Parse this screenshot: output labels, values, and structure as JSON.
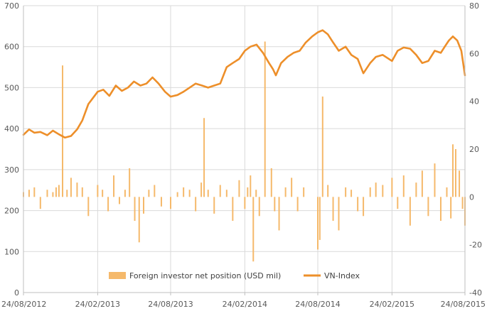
{
  "chart_data": {
    "type": "bar+line",
    "title": "",
    "x_ticks": [
      "24/08/2012",
      "24/02/2013",
      "24/08/2013",
      "24/02/2014",
      "24/08/2014",
      "24/02/2015",
      "24/08/2015"
    ],
    "x_range": [
      "2012-08-24",
      "2015-08-24"
    ],
    "left_axis": {
      "min": 0,
      "max": 700,
      "ticks": [
        0,
        100,
        200,
        300,
        400,
        500,
        600,
        700
      ]
    },
    "right_axis": {
      "min": -40,
      "max": 80,
      "ticks": [
        -40,
        -20,
        0,
        20,
        40,
        60,
        80
      ]
    },
    "gridlines": true,
    "legend_position": "bottom",
    "colors": {
      "bars": "#f5b96b",
      "line": "#ed8f2a",
      "grid": "#d9d9d9",
      "text": "#595959"
    },
    "series": [
      {
        "name": "Foreign investor net position (USD mil)",
        "type": "bar",
        "axis": "right",
        "x": [
          "2012-08-24",
          "2012-09-07",
          "2012-09-20",
          "2012-10-05",
          "2012-10-22",
          "2012-11-05",
          "2012-11-13",
          "2012-11-20",
          "2012-11-29",
          "2012-12-10",
          "2012-12-20",
          "2013-01-04",
          "2013-01-17",
          "2013-02-01",
          "2013-02-24",
          "2013-03-08",
          "2013-03-22",
          "2013-04-05",
          "2013-04-19",
          "2013-05-03",
          "2013-05-14",
          "2013-05-27",
          "2013-06-07",
          "2013-06-18",
          "2013-07-01",
          "2013-07-15",
          "2013-08-01",
          "2013-08-24",
          "2013-09-10",
          "2013-09-25",
          "2013-10-10",
          "2013-10-25",
          "2013-11-08",
          "2013-11-15",
          "2013-11-25",
          "2013-12-10",
          "2013-12-25",
          "2014-01-10",
          "2014-01-25",
          "2014-02-10",
          "2014-02-24",
          "2014-03-03",
          "2014-03-10",
          "2014-03-17",
          "2014-03-24",
          "2014-04-01",
          "2014-04-15",
          "2014-05-01",
          "2014-05-09",
          "2014-05-20",
          "2014-06-05",
          "2014-06-20",
          "2014-07-05",
          "2014-07-20",
          "2014-08-24",
          "2014-08-29",
          "2014-09-05",
          "2014-09-18",
          "2014-10-01",
          "2014-10-15",
          "2014-11-01",
          "2014-11-15",
          "2014-12-01",
          "2014-12-15",
          "2015-01-01",
          "2015-01-15",
          "2015-02-01",
          "2015-02-24",
          "2015-03-10",
          "2015-03-25",
          "2015-04-10",
          "2015-04-25",
          "2015-05-10",
          "2015-05-25",
          "2015-06-10",
          "2015-06-25",
          "2015-07-10",
          "2015-07-20",
          "2015-07-25",
          "2015-08-01",
          "2015-08-10",
          "2015-08-18",
          "2015-08-24"
        ],
        "values": [
          2,
          3,
          4,
          -5,
          3,
          2,
          4,
          5,
          55,
          3,
          8,
          6,
          4,
          -8,
          5,
          3,
          -6,
          9,
          -3,
          3,
          12,
          -10,
          -19,
          -7,
          3,
          5,
          -4,
          -5,
          2,
          4,
          3,
          -6,
          6,
          33,
          3,
          -7,
          5,
          3,
          -10,
          7,
          -5,
          4,
          9,
          -27,
          3,
          -8,
          65,
          12,
          -6,
          -14,
          4,
          8,
          -6,
          4,
          -22,
          -18,
          42,
          5,
          -10,
          -14,
          4,
          3,
          -6,
          -8,
          4,
          6,
          5,
          8,
          -5,
          9,
          -12,
          6,
          11,
          -8,
          14,
          -10,
          4,
          -9,
          22,
          20,
          11,
          -5,
          -12
        ]
      },
      {
        "name": "VN-Index",
        "type": "line",
        "axis": "left",
        "x": [
          "2012-08-24",
          "2012-09-07",
          "2012-09-20",
          "2012-10-05",
          "2012-10-22",
          "2012-11-05",
          "2012-11-20",
          "2012-12-05",
          "2012-12-20",
          "2013-01-04",
          "2013-01-17",
          "2013-02-01",
          "2013-02-24",
          "2013-03-10",
          "2013-03-25",
          "2013-04-10",
          "2013-04-25",
          "2013-05-10",
          "2013-05-25",
          "2013-06-10",
          "2013-06-25",
          "2013-07-10",
          "2013-07-25",
          "2013-08-10",
          "2013-08-24",
          "2013-09-10",
          "2013-09-25",
          "2013-10-10",
          "2013-10-25",
          "2013-11-10",
          "2013-11-25",
          "2013-12-10",
          "2013-12-25",
          "2014-01-10",
          "2014-01-25",
          "2014-02-10",
          "2014-02-24",
          "2014-03-10",
          "2014-03-25",
          "2014-04-10",
          "2014-04-25",
          "2014-05-05",
          "2014-05-12",
          "2014-05-25",
          "2014-06-10",
          "2014-06-25",
          "2014-07-10",
          "2014-07-25",
          "2014-08-10",
          "2014-08-24",
          "2014-09-05",
          "2014-09-18",
          "2014-10-01",
          "2014-10-15",
          "2014-11-01",
          "2014-11-15",
          "2014-12-01",
          "2014-12-15",
          "2015-01-01",
          "2015-01-15",
          "2015-02-01",
          "2015-02-24",
          "2015-03-10",
          "2015-03-25",
          "2015-04-10",
          "2015-04-25",
          "2015-05-10",
          "2015-05-25",
          "2015-06-10",
          "2015-06-25",
          "2015-07-05",
          "2015-07-15",
          "2015-07-25",
          "2015-08-05",
          "2015-08-15",
          "2015-08-24"
        ],
        "values": [
          385,
          398,
          390,
          392,
          384,
          395,
          386,
          378,
          382,
          398,
          420,
          460,
          490,
          495,
          480,
          505,
          492,
          500,
          515,
          505,
          510,
          525,
          510,
          490,
          478,
          482,
          490,
          500,
          510,
          505,
          500,
          505,
          510,
          550,
          560,
          570,
          590,
          600,
          605,
          585,
          560,
          545,
          530,
          560,
          575,
          585,
          590,
          610,
          625,
          635,
          640,
          630,
          610,
          590,
          600,
          580,
          570,
          535,
          560,
          575,
          580,
          565,
          590,
          598,
          595,
          580,
          560,
          565,
          590,
          585,
          600,
          615,
          625,
          615,
          590,
          530
        ]
      }
    ]
  }
}
